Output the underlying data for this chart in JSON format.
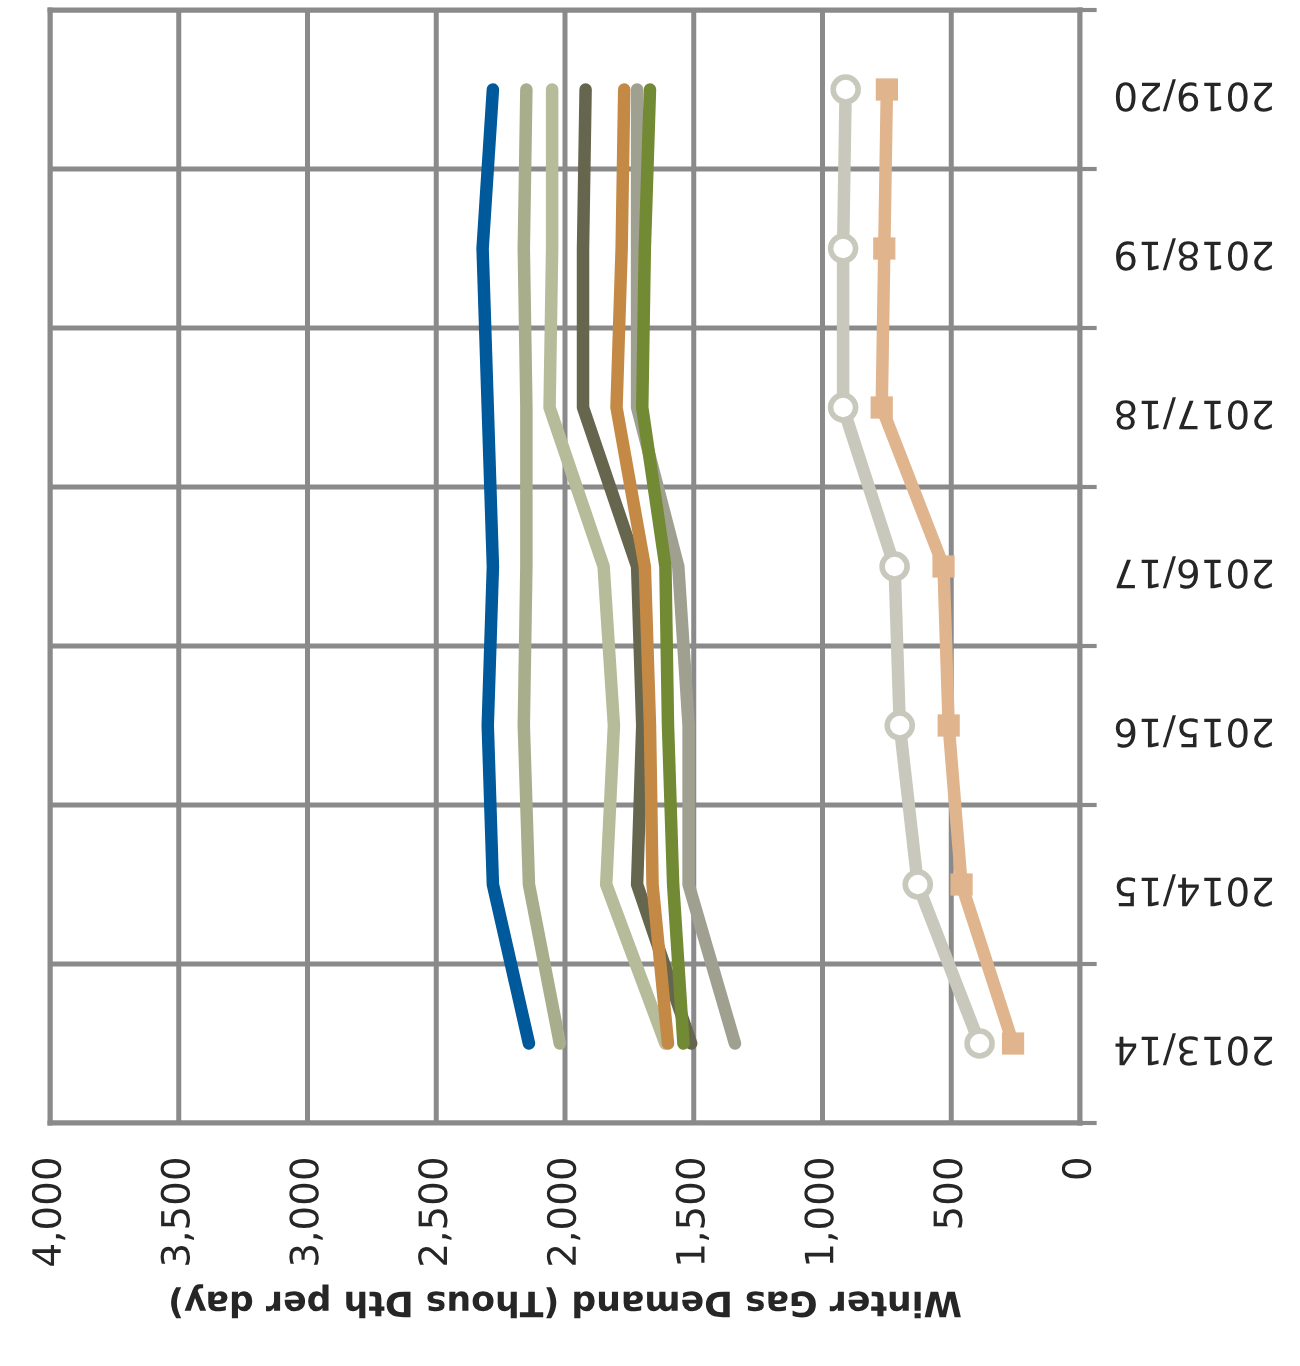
{
  "chart_data": {
    "type": "line",
    "orientation": "horizontal",
    "xlabel": "Winter Gas Demand (Thous Dth per day)",
    "categories": [
      "2019/20",
      "2018/19",
      "2017/18",
      "2016/17",
      "2015/16",
      "2014/15",
      "2013/14"
    ],
    "xlim": [
      4000,
      0
    ],
    "xticks": [
      {
        "value": 4000,
        "label": "4,000"
      },
      {
        "value": 3500,
        "label": "3,500"
      },
      {
        "value": 3000,
        "label": "3,000"
      },
      {
        "value": 2500,
        "label": "2,500"
      },
      {
        "value": 2000,
        "label": "2,000"
      },
      {
        "value": 1500,
        "label": "1,500"
      },
      {
        "value": 1000,
        "label": "1,000"
      },
      500,
      0
    ],
    "grid": true,
    "legend": false,
    "line_style": "solid",
    "series": [
      {
        "color": "#00599b",
        "values": [
          2280,
          2320,
          2300,
          2280,
          2300,
          2280,
          2140
        ]
      },
      {
        "color": "#a8ae8c",
        "values": [
          2150,
          2160,
          2150,
          2150,
          2160,
          2140,
          2020
        ]
      },
      {
        "color": "#b6bb99",
        "values": [
          2050,
          2050,
          2060,
          1850,
          1810,
          1840,
          1610
        ]
      },
      {
        "color": "#66664f",
        "values": [
          1920,
          1930,
          1930,
          1720,
          1700,
          1720,
          1510
        ]
      },
      {
        "color": "#c48a45",
        "values": [
          1770,
          1780,
          1800,
          1690,
          1670,
          1660,
          1600
        ]
      },
      {
        "color": "#a0a091",
        "values": [
          1720,
          1720,
          1720,
          1560,
          1520,
          1520,
          1340
        ]
      },
      {
        "color": "#718a33",
        "values": [
          1670,
          1690,
          1700,
          1610,
          1600,
          1580,
          1540
        ]
      },
      {
        "color": "#c8c9bc",
        "marker": "circle",
        "values": [
          910,
          920,
          920,
          720,
          700,
          630,
          390
        ]
      },
      {
        "color": "#e0b48c",
        "marker": "square",
        "values": [
          750,
          760,
          770,
          530,
          510,
          460,
          260
        ]
      }
    ]
  }
}
